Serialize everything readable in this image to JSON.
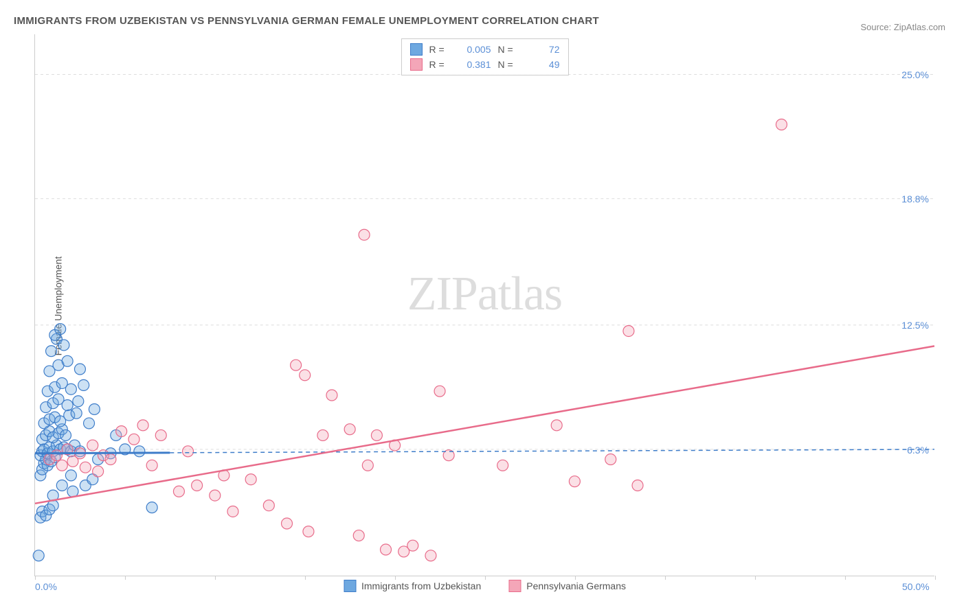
{
  "title": "IMMIGRANTS FROM UZBEKISTAN VS PENNSYLVANIA GERMAN FEMALE UNEMPLOYMENT CORRELATION CHART",
  "source_label": "Source: ZipAtlas.com",
  "y_axis_label": "Female Unemployment",
  "watermark": {
    "part1": "ZIP",
    "part2": "atlas"
  },
  "chart": {
    "type": "scatter",
    "xlim": [
      0,
      50
    ],
    "ylim": [
      0,
      27
    ],
    "background_color": "#ffffff",
    "grid_color": "#dddddd",
    "axis_color": "#cccccc",
    "tick_label_color": "#5b8fd6",
    "y_ticks": [
      {
        "value": 6.3,
        "label": "6.3%"
      },
      {
        "value": 12.5,
        "label": "12.5%"
      },
      {
        "value": 18.8,
        "label": "18.8%"
      },
      {
        "value": 25.0,
        "label": "25.0%"
      }
    ],
    "x_ticks": [
      {
        "value": 0,
        "label": "0.0%"
      },
      {
        "value": 50,
        "label": "50.0%"
      }
    ],
    "x_minor_tick_step": 5,
    "marker_radius": 8,
    "marker_stroke_width": 1.2,
    "marker_fill_opacity": 0.35
  },
  "series": [
    {
      "name": "Immigrants from Uzbekistan",
      "color": "#6ea8e0",
      "stroke": "#3d7cc9",
      "r_value": "0.005",
      "n_value": "72",
      "trend": {
        "y_intercept": 6.1,
        "slope": 0.004,
        "style": "dashed",
        "solid_until_x": 7.5,
        "width": 2
      },
      "points": [
        [
          0.2,
          1.0
        ],
        [
          0.3,
          2.9
        ],
        [
          0.4,
          3.2
        ],
        [
          0.6,
          3.0
        ],
        [
          0.8,
          3.3
        ],
        [
          1.0,
          3.5
        ],
        [
          0.3,
          5.0
        ],
        [
          0.4,
          5.3
        ],
        [
          0.5,
          5.6
        ],
        [
          0.6,
          5.8
        ],
        [
          0.7,
          5.5
        ],
        [
          0.9,
          5.7
        ],
        [
          1.1,
          5.9
        ],
        [
          0.3,
          6.0
        ],
        [
          0.4,
          6.2
        ],
        [
          0.5,
          6.3
        ],
        [
          0.7,
          6.1
        ],
        [
          0.8,
          6.4
        ],
        [
          1.0,
          6.2
        ],
        [
          1.2,
          6.5
        ],
        [
          1.4,
          6.3
        ],
        [
          1.6,
          6.4
        ],
        [
          1.8,
          6.3
        ],
        [
          2.0,
          6.2
        ],
        [
          2.2,
          6.5
        ],
        [
          2.5,
          6.2
        ],
        [
          0.4,
          6.8
        ],
        [
          0.6,
          7.0
        ],
        [
          0.8,
          7.2
        ],
        [
          1.0,
          6.9
        ],
        [
          1.3,
          7.1
        ],
        [
          1.5,
          7.3
        ],
        [
          1.7,
          7.0
        ],
        [
          0.5,
          7.6
        ],
        [
          0.8,
          7.8
        ],
        [
          1.1,
          7.9
        ],
        [
          1.4,
          7.7
        ],
        [
          1.9,
          8.0
        ],
        [
          2.3,
          8.1
        ],
        [
          3.0,
          7.6
        ],
        [
          0.6,
          8.4
        ],
        [
          1.0,
          8.6
        ],
        [
          1.3,
          8.8
        ],
        [
          1.8,
          8.5
        ],
        [
          2.4,
          8.7
        ],
        [
          3.3,
          8.3
        ],
        [
          0.7,
          9.2
        ],
        [
          1.1,
          9.4
        ],
        [
          1.5,
          9.6
        ],
        [
          2.0,
          9.3
        ],
        [
          2.7,
          9.5
        ],
        [
          0.8,
          10.2
        ],
        [
          1.3,
          10.5
        ],
        [
          1.8,
          10.7
        ],
        [
          2.5,
          10.3
        ],
        [
          0.9,
          11.2
        ],
        [
          1.2,
          11.8
        ],
        [
          1.6,
          11.5
        ],
        [
          1.1,
          12.0
        ],
        [
          1.4,
          12.3
        ],
        [
          2.1,
          4.2
        ],
        [
          2.8,
          4.5
        ],
        [
          3.5,
          5.8
        ],
        [
          4.2,
          6.1
        ],
        [
          5.0,
          6.3
        ],
        [
          5.8,
          6.2
        ],
        [
          4.5,
          7.0
        ],
        [
          3.2,
          4.8
        ],
        [
          6.5,
          3.4
        ],
        [
          1.0,
          4.0
        ],
        [
          1.5,
          4.5
        ],
        [
          2.0,
          5.0
        ]
      ]
    },
    {
      "name": "Pennsylvania Germans",
      "color": "#f4a6b8",
      "stroke": "#e86b8a",
      "r_value": "0.381",
      "n_value": "49",
      "trend": {
        "y_intercept": 3.6,
        "slope": 0.157,
        "style": "solid",
        "width": 2.5
      },
      "points": [
        [
          0.8,
          5.8
        ],
        [
          1.2,
          6.0
        ],
        [
          1.5,
          5.5
        ],
        [
          1.8,
          6.3
        ],
        [
          2.1,
          5.7
        ],
        [
          2.5,
          6.1
        ],
        [
          2.8,
          5.4
        ],
        [
          3.2,
          6.5
        ],
        [
          3.5,
          5.2
        ],
        [
          3.8,
          6.0
        ],
        [
          4.2,
          5.8
        ],
        [
          4.8,
          7.2
        ],
        [
          5.5,
          6.8
        ],
        [
          6.0,
          7.5
        ],
        [
          6.5,
          5.5
        ],
        [
          7.0,
          7.0
        ],
        [
          8.0,
          4.2
        ],
        [
          9.0,
          4.5
        ],
        [
          10.0,
          4.0
        ],
        [
          10.5,
          5.0
        ],
        [
          11.0,
          3.2
        ],
        [
          12.0,
          4.8
        ],
        [
          13.0,
          3.5
        ],
        [
          14.0,
          2.6
        ],
        [
          14.5,
          10.5
        ],
        [
          15.0,
          10.0
        ],
        [
          15.2,
          2.2
        ],
        [
          16.0,
          7.0
        ],
        [
          16.5,
          9.0
        ],
        [
          17.5,
          7.3
        ],
        [
          18.0,
          2.0
        ],
        [
          18.5,
          5.5
        ],
        [
          19.0,
          7.0
        ],
        [
          19.5,
          1.3
        ],
        [
          20.0,
          6.5
        ],
        [
          20.5,
          1.2
        ],
        [
          21.0,
          1.5
        ],
        [
          22.0,
          1.0
        ],
        [
          22.5,
          9.2
        ],
        [
          23.0,
          6.0
        ],
        [
          26.0,
          5.5
        ],
        [
          29.0,
          7.5
        ],
        [
          30.0,
          4.7
        ],
        [
          32.0,
          5.8
        ],
        [
          33.0,
          12.2
        ],
        [
          33.5,
          4.5
        ],
        [
          18.3,
          17.0
        ],
        [
          41.5,
          22.5
        ],
        [
          8.5,
          6.2
        ]
      ]
    }
  ],
  "top_legend": {
    "r_label": "R =",
    "n_label": "N ="
  },
  "bottom_legend": {
    "items": [
      "Immigrants from Uzbekistan",
      "Pennsylvania Germans"
    ]
  }
}
